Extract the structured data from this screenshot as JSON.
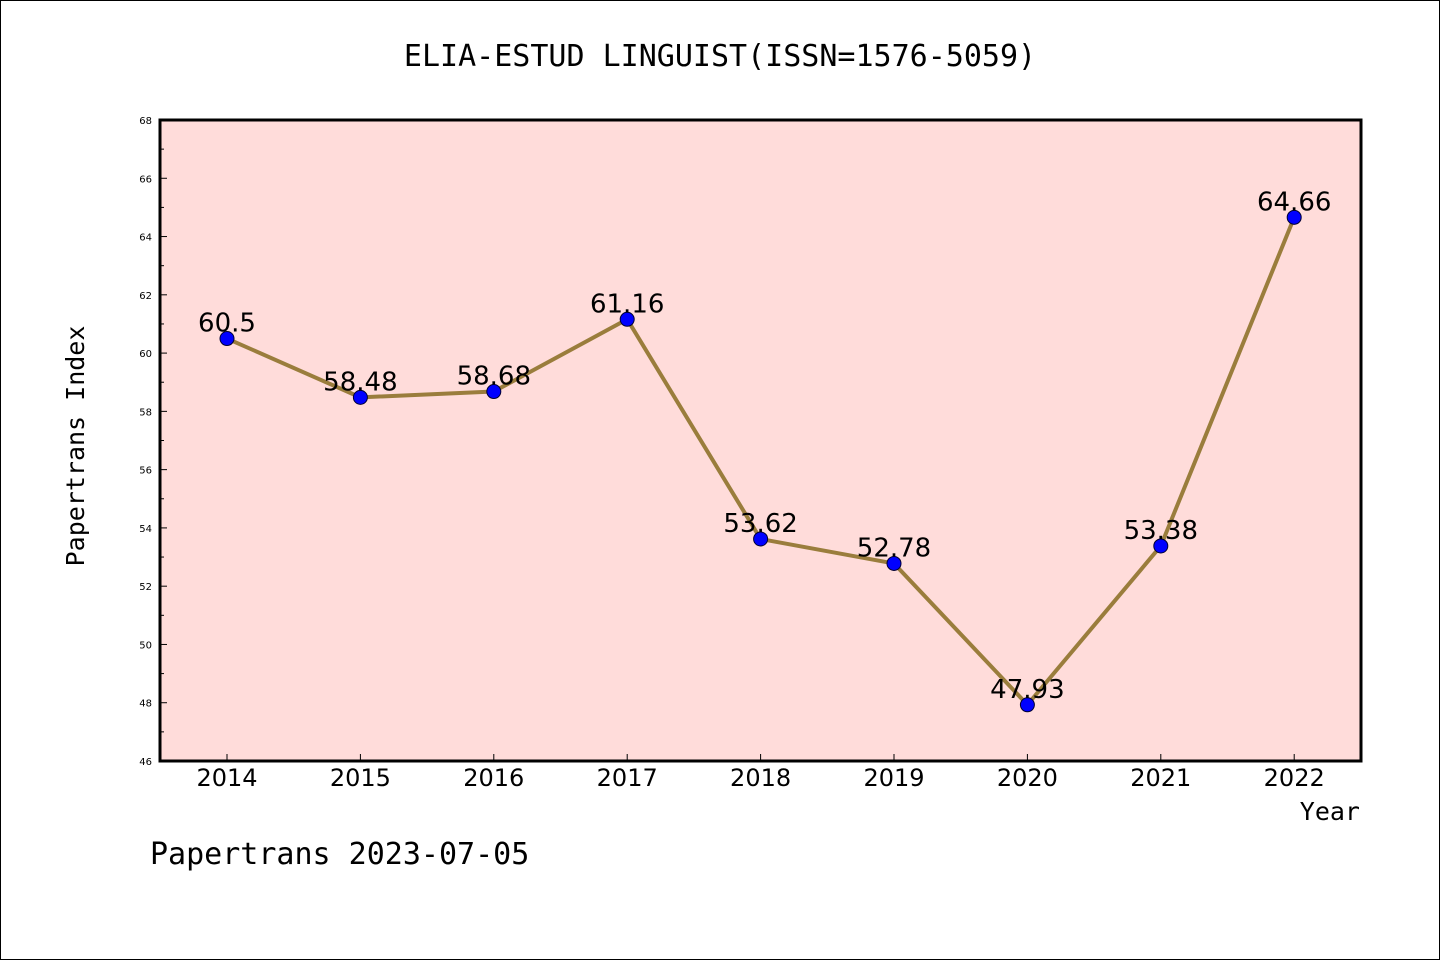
{
  "chart_data": {
    "type": "line",
    "title": "ELIA-ESTUD LINGUIST(ISSN=1576-5059)",
    "xlabel": "Year",
    "ylabel": "Papertrans Index",
    "categories": [
      "2014",
      "2015",
      "2016",
      "2017",
      "2018",
      "2019",
      "2020",
      "2021",
      "2022"
    ],
    "series": [
      {
        "values": [
          60.5,
          58.48,
          58.68,
          61.16,
          53.62,
          52.78,
          47.93,
          53.38,
          64.66
        ],
        "labels": [
          "60.5",
          "58.48",
          "58.68",
          "61.16",
          "53.62",
          "52.78",
          "47.93",
          "53.38",
          "64.66"
        ]
      }
    ],
    "ylim": [
      46,
      68
    ],
    "yticks": [
      "46",
      "48",
      "50",
      "52",
      "54",
      "56",
      "58",
      "60",
      "62",
      "64",
      "66",
      "68"
    ],
    "grid": false,
    "line_color": "#9a7d3c",
    "marker_color": "#0000ff",
    "plot_background": "#ffdcda"
  },
  "footer": "Papertrans 2023-07-05"
}
